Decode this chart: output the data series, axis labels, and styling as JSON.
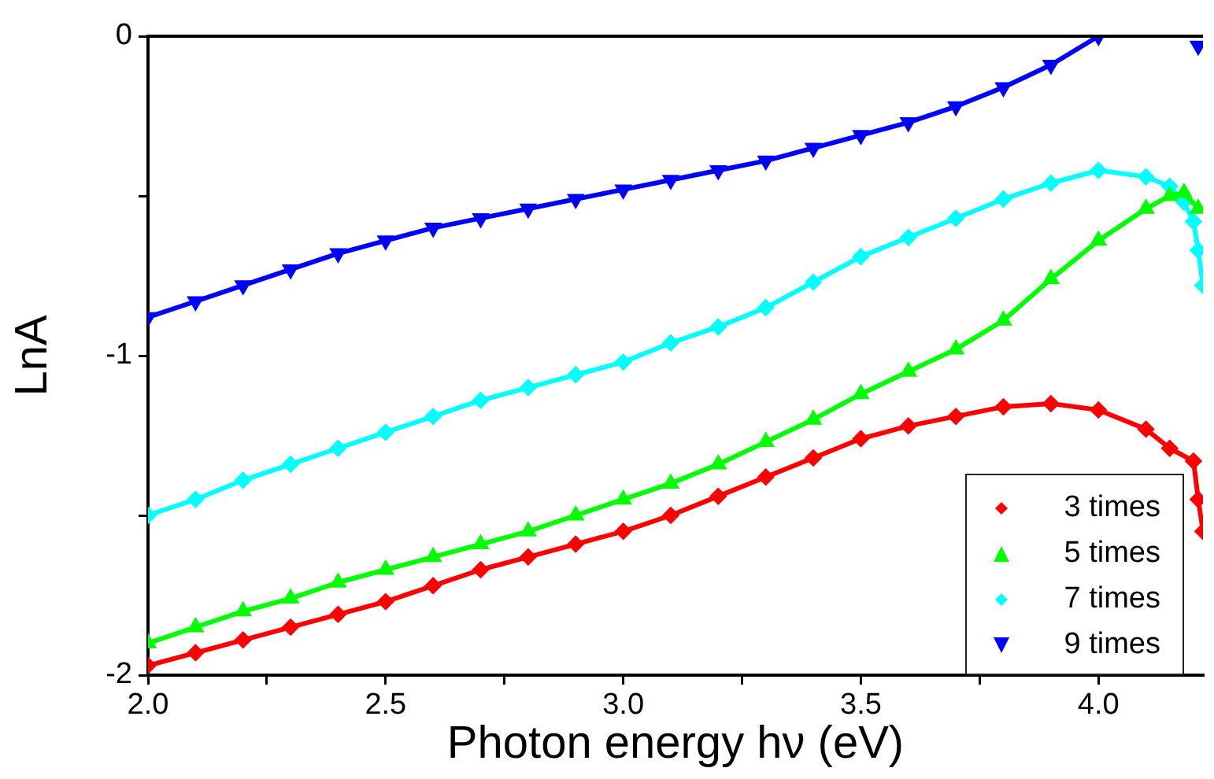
{
  "chart_data": {
    "type": "line",
    "xlabel": "Photon energy hν (eV)",
    "ylabel": "LnA",
    "xlim": [
      2,
      4.22
    ],
    "ylim": [
      -2,
      0
    ],
    "xticks": [
      {
        "value": 2,
        "label": "2.0"
      },
      {
        "value": 2.25,
        "label": null
      },
      {
        "value": 2.5,
        "label": "2.5"
      },
      {
        "value": 2.75,
        "label": null
      },
      {
        "value": 3,
        "label": "3.0"
      },
      {
        "value": 3.25,
        "label": null
      },
      {
        "value": 3.5,
        "label": "3.5"
      },
      {
        "value": 3.75,
        "label": null
      },
      {
        "value": 4,
        "label": "4.0"
      }
    ],
    "yticks": [
      -2,
      {
        "value": -1.5,
        "label": null
      },
      -1,
      {
        "value": -0.5,
        "label": null
      },
      0
    ],
    "grid": false,
    "legend": "bottom right",
    "series": [
      {
        "name": "3 times",
        "color": "#ff0000",
        "marker": "diamond",
        "x": [
          2.0,
          2.1,
          2.2,
          2.3,
          2.4,
          2.5,
          2.6,
          2.7,
          2.8,
          2.9,
          3.0,
          3.1,
          3.2,
          3.3,
          3.4,
          3.5,
          3.6,
          3.7,
          3.8,
          3.9,
          4.0,
          4.1,
          4.15,
          4.2,
          4.21,
          4.22
        ],
        "values": [
          -1.97,
          -1.93,
          -1.89,
          -1.85,
          -1.81,
          -1.77,
          -1.72,
          -1.67,
          -1.63,
          -1.59,
          -1.55,
          -1.5,
          -1.44,
          -1.38,
          -1.32,
          -1.26,
          -1.22,
          -1.19,
          -1.16,
          -1.15,
          -1.17,
          -1.23,
          -1.29,
          -1.33,
          -1.45,
          -1.55
        ]
      },
      {
        "name": "5 times",
        "color": "#00ff00",
        "marker": "triangle",
        "x": [
          2.0,
          2.1,
          2.2,
          2.3,
          2.4,
          2.5,
          2.6,
          2.7,
          2.8,
          2.9,
          3.0,
          3.1,
          3.2,
          3.3,
          3.4,
          3.5,
          3.6,
          3.7,
          3.8,
          3.9,
          4.0,
          4.1,
          4.15,
          4.18,
          4.21
        ],
        "values": [
          -1.9,
          -1.85,
          -1.8,
          -1.76,
          -1.71,
          -1.67,
          -1.63,
          -1.59,
          -1.55,
          -1.5,
          -1.45,
          -1.4,
          -1.34,
          -1.27,
          -1.2,
          -1.12,
          -1.05,
          -0.98,
          -0.89,
          -0.76,
          -0.64,
          -0.54,
          -0.5,
          -0.49,
          -0.54
        ]
      },
      {
        "name": "7 times",
        "color": "#00ffff",
        "marker": "diamond",
        "x": [
          2.0,
          2.1,
          2.2,
          2.3,
          2.4,
          2.5,
          2.6,
          2.7,
          2.8,
          2.9,
          3.0,
          3.1,
          3.2,
          3.3,
          3.4,
          3.5,
          3.6,
          3.7,
          3.8,
          3.9,
          4.0,
          4.1,
          4.15,
          4.18,
          4.2,
          4.21,
          4.22
        ],
        "values": [
          -1.5,
          -1.45,
          -1.39,
          -1.34,
          -1.29,
          -1.24,
          -1.19,
          -1.14,
          -1.1,
          -1.06,
          -1.02,
          -0.96,
          -0.91,
          -0.85,
          -0.77,
          -0.69,
          -0.63,
          -0.57,
          -0.51,
          -0.46,
          -0.42,
          -0.44,
          -0.47,
          -0.52,
          -0.58,
          -0.67,
          -0.78
        ]
      },
      {
        "name": "9 times",
        "color": "#0000ff",
        "marker": "triangle-down",
        "x": [
          2.0,
          2.1,
          2.2,
          2.3,
          2.4,
          2.5,
          2.6,
          2.7,
          2.8,
          2.9,
          3.0,
          3.1,
          3.2,
          3.3,
          3.4,
          3.5,
          3.6,
          3.7,
          3.8,
          3.9,
          4.0,
          4.1,
          4.21
        ],
        "values": [
          -0.88,
          -0.83,
          -0.78,
          -0.73,
          -0.68,
          -0.64,
          -0.6,
          -0.57,
          -0.54,
          -0.51,
          -0.48,
          -0.45,
          -0.42,
          -0.39,
          -0.35,
          -0.31,
          -0.27,
          -0.22,
          -0.16,
          -0.09,
          0,
          null,
          -0.03
        ]
      }
    ]
  }
}
